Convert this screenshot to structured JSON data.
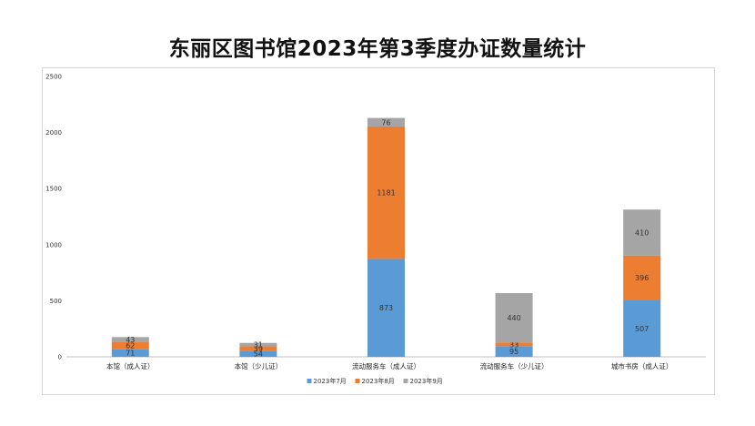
{
  "chart_data": {
    "type": "bar",
    "stacked": true,
    "title": "东丽区图书馆2023年第3季度办证数量统计",
    "xlabel": "",
    "ylabel": "",
    "ylim": [
      0,
      2500
    ],
    "yticks": [
      0,
      500,
      1000,
      1500,
      2000,
      2500
    ],
    "grid": false,
    "legend_position": "bottom",
    "categories": [
      "本馆（成人证）",
      "本馆（少儿证）",
      "流动服务车（成人证）",
      "流动服务车（少儿证）",
      "城市书房（成人证）"
    ],
    "series": [
      {
        "name": "2023年7月",
        "color": "#5b9bd5",
        "values": [
          71,
          54,
          873,
          95,
          507
        ]
      },
      {
        "name": "2023年8月",
        "color": "#ed7d31",
        "values": [
          62,
          39,
          1181,
          33,
          396
        ]
      },
      {
        "name": "2023年9月",
        "color": "#a5a5a5",
        "values": [
          43,
          31,
          76,
          440,
          410
        ]
      }
    ]
  }
}
